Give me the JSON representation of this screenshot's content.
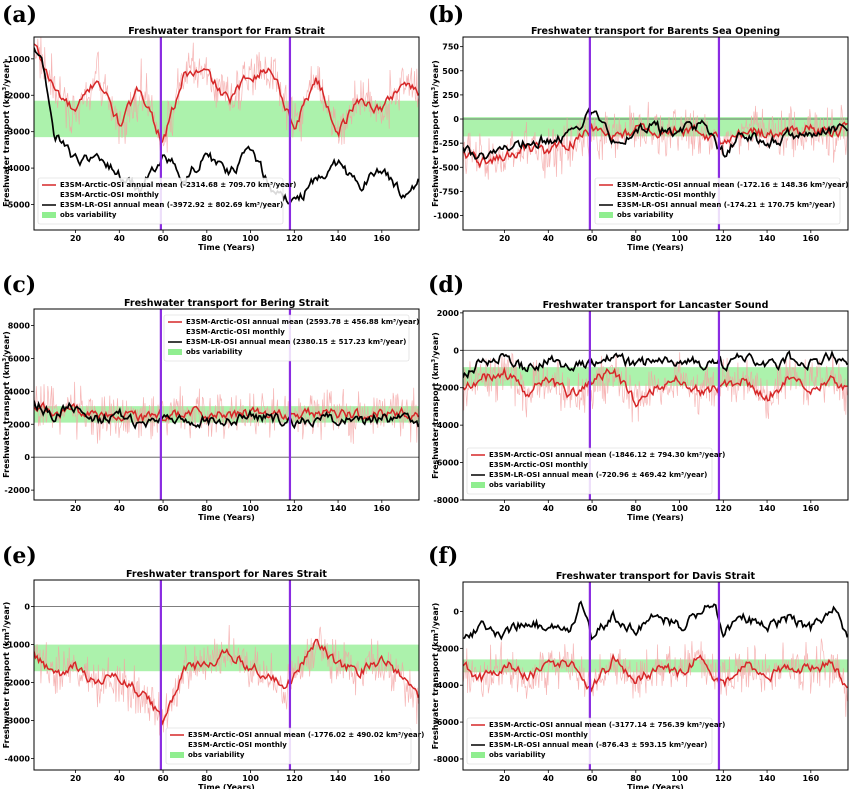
{
  "figure": {
    "panel_letters": [
      "(a)",
      "(b)",
      "(c)",
      "(d)",
      "(e)",
      "(f)"
    ]
  },
  "colors": {
    "model_annual": "#d62728",
    "model_monthly": "#f4a3a3",
    "lr_annual": "#000000",
    "obs_band": "#90ee90",
    "marker_lines": "#8a2be2"
  },
  "chart_data": [
    {
      "type": "line",
      "panel": "(a)",
      "title": "Freshwater transport for Fram Strait",
      "xlabel": "Time (Years)",
      "ylabel": "Freshwater transport (km³/year)",
      "xlim": [
        1,
        177
      ],
      "ylim": [
        -5700,
        -400
      ],
      "xticks": [
        20,
        40,
        60,
        80,
        100,
        120,
        140,
        160
      ],
      "yticks": [
        -1000,
        -2000,
        -3000,
        -4000,
        -5000
      ],
      "marker_years": [
        59,
        118
      ],
      "zero_line": false,
      "obs_band": [
        -3150,
        -2150
      ],
      "legend_position": "lower-left",
      "legend": [
        {
          "label": "E3SM-Arctic-OSI annual mean (-2314.68 ± 709.70 km³/year)",
          "kind": "model_annual"
        },
        {
          "label": "E3SM-Arctic-OSI monthly",
          "kind": "model_monthly"
        },
        {
          "label": "E3SM-LR-OSI annual mean (-3972.92 ± 802.69 km³/year)",
          "kind": "lr_annual"
        },
        {
          "label": "obs variability",
          "kind": "obs"
        }
      ],
      "series": [
        {
          "name": "E3SM-Arctic-OSI annual mean",
          "kind": "model_annual",
          "x": [
            1,
            10,
            20,
            30,
            40,
            50,
            60,
            70,
            80,
            90,
            100,
            110,
            120,
            130,
            140,
            150,
            160,
            170,
            177
          ],
          "y": [
            -600,
            -1800,
            -2500,
            -1500,
            -2800,
            -1800,
            -3300,
            -1400,
            -1400,
            -2200,
            -1400,
            -1300,
            -2900,
            -1500,
            -3000,
            -2100,
            -2400,
            -1600,
            -2000
          ]
        },
        {
          "name": "E3SM-LR-OSI annual mean",
          "kind": "lr_annual",
          "x": [
            1,
            5,
            10,
            20,
            30,
            40,
            50,
            60,
            70,
            80,
            90,
            100,
            110,
            120,
            130,
            140,
            150,
            160,
            170,
            177
          ],
          "y": [
            -700,
            -1200,
            -3000,
            -3800,
            -3600,
            -4200,
            -4600,
            -3600,
            -4300,
            -3600,
            -4200,
            -3500,
            -4600,
            -5000,
            -4300,
            -3900,
            -4500,
            -4000,
            -4800,
            -4400
          ]
        }
      ]
    },
    {
      "type": "line",
      "panel": "(b)",
      "title": "Freshwater transport for Barents Sea Opening",
      "xlabel": "Time (Years)",
      "ylabel": "Freshwater transport (km³/year)",
      "xlim": [
        1,
        177
      ],
      "ylim": [
        -1150,
        850
      ],
      "xticks": [
        20,
        40,
        60,
        80,
        100,
        120,
        140,
        160
      ],
      "yticks": [
        750,
        500,
        250,
        0,
        -250,
        -500,
        -750,
        -1000
      ],
      "marker_years": [
        59,
        118
      ],
      "zero_line": true,
      "obs_band": [
        -180,
        20
      ],
      "legend_position": "lower-right",
      "legend": [
        {
          "label": "E3SM-Arctic-OSI annual mean (-172.16 ± 148.36 km³/year)",
          "kind": "model_annual"
        },
        {
          "label": "E3SM-Arctic-OSI monthly",
          "kind": "model_monthly"
        },
        {
          "label": "E3SM-LR-OSI annual mean (-174.21 ± 170.75 km³/year)",
          "kind": "lr_annual"
        },
        {
          "label": "obs variability",
          "kind": "obs"
        }
      ],
      "series": [
        {
          "name": "E3SM-Arctic-OSI annual mean",
          "kind": "model_annual",
          "x": [
            1,
            10,
            20,
            30,
            40,
            50,
            60,
            70,
            80,
            90,
            100,
            110,
            120,
            130,
            140,
            150,
            160,
            170,
            177
          ],
          "y": [
            -350,
            -450,
            -400,
            -300,
            -350,
            -250,
            -100,
            -200,
            -100,
            -150,
            -100,
            -150,
            -250,
            -100,
            -150,
            -150,
            -100,
            -150,
            -100
          ]
        },
        {
          "name": "E3SM-LR-OSI annual mean",
          "kind": "lr_annual",
          "x": [
            1,
            10,
            20,
            30,
            40,
            50,
            60,
            70,
            80,
            90,
            100,
            110,
            120,
            130,
            140,
            150,
            160,
            170,
            177
          ],
          "y": [
            -300,
            -400,
            -300,
            -250,
            -200,
            -150,
            50,
            -250,
            -100,
            -100,
            -150,
            -50,
            -350,
            -150,
            -250,
            -150,
            -200,
            -100,
            -150
          ]
        }
      ]
    },
    {
      "type": "line",
      "panel": "(c)",
      "title": "Freshwater transport for Bering Strait",
      "xlabel": "Time (Years)",
      "ylabel": "Freshwater transport (km³/year)",
      "xlim": [
        1,
        177
      ],
      "ylim": [
        -2600,
        9000
      ],
      "xticks": [
        20,
        40,
        60,
        80,
        100,
        120,
        140,
        160
      ],
      "yticks": [
        8000,
        6000,
        4000,
        2000,
        0,
        -2000
      ],
      "marker_years": [
        59,
        118
      ],
      "zero_line": true,
      "obs_band": [
        2100,
        3100
      ],
      "legend_position": "upper-right",
      "legend": [
        {
          "label": "E3SM-Arctic-OSI annual mean (2593.78 ± 456.88 km³/year)",
          "kind": "model_annual"
        },
        {
          "label": "E3SM-Arctic-OSI monthly",
          "kind": "model_monthly"
        },
        {
          "label": "E3SM-LR-OSI annual mean (2380.15 ± 517.23 km³/year)",
          "kind": "lr_annual"
        },
        {
          "label": "obs variability",
          "kind": "obs"
        }
      ],
      "series": [
        {
          "name": "E3SM-Arctic-OSI annual mean",
          "kind": "model_annual",
          "x": [
            1,
            10,
            20,
            30,
            40,
            50,
            60,
            70,
            80,
            90,
            100,
            110,
            120,
            130,
            140,
            150,
            160,
            170,
            177
          ],
          "y": [
            3000,
            2700,
            2900,
            2500,
            2600,
            2300,
            2500,
            2700,
            2600,
            2500,
            2700,
            2600,
            2500,
            2700,
            2600,
            2500,
            2700,
            2600,
            2400
          ]
        },
        {
          "name": "E3SM-LR-OSI annual mean",
          "kind": "lr_annual",
          "x": [
            1,
            10,
            20,
            30,
            40,
            50,
            60,
            70,
            80,
            90,
            100,
            110,
            120,
            130,
            140,
            150,
            160,
            170,
            177
          ],
          "y": [
            3400,
            2600,
            3200,
            2300,
            2600,
            2000,
            2200,
            2400,
            2300,
            2100,
            2500,
            2300,
            2200,
            2400,
            2300,
            2100,
            2400,
            2200,
            2000
          ]
        }
      ]
    },
    {
      "type": "line",
      "panel": "(d)",
      "title": "Freshwater transport for Lancaster Sound",
      "xlabel": "Time (Years)",
      "ylabel": "Freshwater transport (km³/year)",
      "xlim": [
        1,
        177
      ],
      "ylim": [
        -8000,
        2100
      ],
      "xticks": [
        20,
        40,
        60,
        80,
        100,
        120,
        140,
        160
      ],
      "yticks": [
        2000,
        0,
        -2000,
        -4000,
        -6000,
        -8000
      ],
      "marker_years": [
        59,
        118
      ],
      "zero_line": true,
      "obs_band": [
        -1900,
        -900
      ],
      "legend_position": "lower-left",
      "legend": [
        {
          "label": "E3SM-Arctic-OSI annual mean (-1846.12 ± 794.30 km³/year)",
          "kind": "model_annual"
        },
        {
          "label": "E3SM-Arctic-OSI monthly",
          "kind": "model_monthly"
        },
        {
          "label": "E3SM-LR-OSI annual mean (-720.96 ± 469.42 km³/year)",
          "kind": "lr_annual"
        },
        {
          "label": "obs variability",
          "kind": "obs"
        }
      ],
      "series": [
        {
          "name": "E3SM-Arctic-OSI annual mean",
          "kind": "model_annual",
          "x": [
            1,
            10,
            20,
            30,
            40,
            50,
            60,
            70,
            80,
            90,
            100,
            110,
            120,
            130,
            140,
            150,
            160,
            170,
            177
          ],
          "y": [
            -2000,
            -1500,
            -1200,
            -2200,
            -1500,
            -2500,
            -1700,
            -1200,
            -2800,
            -1800,
            -1500,
            -2100,
            -1900,
            -1500,
            -2600,
            -1500,
            -2000,
            -1400,
            -2200
          ]
        },
        {
          "name": "E3SM-LR-OSI annual mean",
          "kind": "lr_annual",
          "x": [
            1,
            10,
            20,
            30,
            40,
            50,
            60,
            70,
            80,
            90,
            100,
            110,
            120,
            130,
            140,
            150,
            160,
            170,
            177
          ],
          "y": [
            -1500,
            -500,
            -300,
            -1000,
            -500,
            -1100,
            -600,
            -300,
            -900,
            -400,
            -500,
            -700,
            -800,
            -300,
            -1000,
            -400,
            -700,
            -300,
            -1000
          ]
        }
      ]
    },
    {
      "type": "line",
      "panel": "(e)",
      "title": "Freshwater transport for Nares Strait",
      "xlabel": "Time (Years)",
      "ylabel": "Freshwater transport (km³/year)",
      "xlim": [
        1,
        177
      ],
      "ylim": [
        -4300,
        700
      ],
      "xticks": [
        20,
        40,
        60,
        80,
        100,
        120,
        140,
        160
      ],
      "yticks": [
        0,
        -1000,
        -2000,
        -3000,
        -4000
      ],
      "marker_years": [
        59,
        118
      ],
      "zero_line": true,
      "obs_band": [
        -1700,
        -1000
      ],
      "legend_position": "lower-right",
      "legend": [
        {
          "label": "E3SM-Arctic-OSI annual mean (-1776.02 ± 490.02 km³/year)",
          "kind": "model_annual"
        },
        {
          "label": "E3SM-Arctic-OSI monthly",
          "kind": "model_monthly"
        },
        {
          "label": "obs variability",
          "kind": "obs"
        }
      ],
      "series": [
        {
          "name": "E3SM-Arctic-OSI annual mean",
          "kind": "model_annual",
          "x": [
            1,
            10,
            20,
            30,
            40,
            50,
            55,
            60,
            70,
            80,
            90,
            100,
            110,
            115,
            120,
            130,
            140,
            150,
            160,
            170,
            177
          ],
          "y": [
            -1200,
            -1800,
            -1600,
            -2000,
            -1800,
            -2300,
            -2600,
            -3000,
            -1600,
            -1500,
            -1200,
            -1600,
            -1900,
            -2200,
            -1800,
            -1000,
            -1500,
            -1700,
            -1400,
            -1900,
            -2500
          ]
        }
      ]
    },
    {
      "type": "line",
      "panel": "(f)",
      "title": "Freshwater transport for Davis Strait",
      "xlabel": "Time (Years)",
      "ylabel": "Freshwater transport (km³/year)",
      "xlim": [
        1,
        177
      ],
      "ylim": [
        -8600,
        1600
      ],
      "xticks": [
        20,
        40,
        60,
        80,
        100,
        120,
        140,
        160
      ],
      "yticks": [
        0,
        -2000,
        -4000,
        -6000,
        -8000
      ],
      "marker_years": [
        59,
        118
      ],
      "zero_line": false,
      "obs_band": [
        -3300,
        -2600
      ],
      "legend_position": "lower-left",
      "legend": [
        {
          "label": "E3SM-Arctic-OSI annual mean (-3177.14 ± 756.39 km³/year)",
          "kind": "model_annual"
        },
        {
          "label": "E3SM-Arctic-OSI monthly",
          "kind": "model_monthly"
        },
        {
          "label": "E3SM-LR-OSI annual mean (-876.43 ± 593.15 km³/year)",
          "kind": "lr_annual"
        },
        {
          "label": "obs variability",
          "kind": "obs"
        }
      ],
      "series": [
        {
          "name": "E3SM-Arctic-OSI annual mean",
          "kind": "model_annual",
          "x": [
            1,
            10,
            20,
            30,
            40,
            50,
            60,
            70,
            80,
            90,
            100,
            110,
            120,
            130,
            140,
            150,
            160,
            170,
            177
          ],
          "y": [
            -3000,
            -3700,
            -2800,
            -3500,
            -3100,
            -2800,
            -4200,
            -2600,
            -3800,
            -3000,
            -3400,
            -2400,
            -4000,
            -2900,
            -3600,
            -2900,
            -3200,
            -2700,
            -4600
          ]
        },
        {
          "name": "E3SM-LR-OSI annual mean",
          "kind": "lr_annual",
          "x": [
            1,
            10,
            20,
            30,
            40,
            50,
            55,
            60,
            70,
            80,
            90,
            100,
            110,
            115,
            120,
            130,
            140,
            150,
            160,
            170,
            175,
            177
          ],
          "y": [
            -1500,
            -800,
            -1300,
            -400,
            -1000,
            -800,
            600,
            -1200,
            -300,
            -1000,
            -200,
            -700,
            -300,
            700,
            -1100,
            -400,
            -900,
            -300,
            -1000,
            400,
            -900,
            -1700
          ]
        }
      ]
    }
  ]
}
